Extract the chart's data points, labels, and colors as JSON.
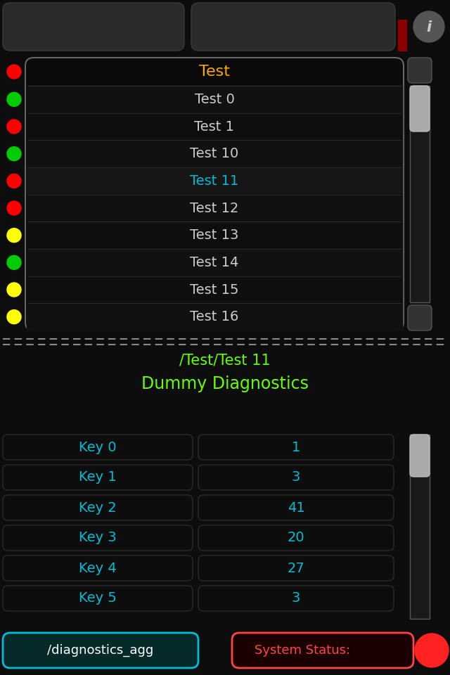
{
  "bg_color": "#0d0d0d",
  "white_text": "#cccccc",
  "orange_text": "#FFA500",
  "green_text": "#66FF00",
  "cyan_text": "#00BCD4",
  "red_text": "#FF4444",
  "header_text": "Test",
  "list_items": [
    "Test 0",
    "Test 1",
    "Test 10",
    "Test 11",
    "Test 12",
    "Test 13",
    "Test 14",
    "Test 15",
    "Test 16"
  ],
  "selected_item": "Test 11",
  "dot_colors": [
    "#FF0000",
    "#00CC00",
    "#FF0000",
    "#00CC00",
    "#FF0000",
    "#FF0000",
    "#FFFF00",
    "#00CC00",
    "#FFFF00",
    "#FFFF00"
  ],
  "path_text": "/Test/Test 11",
  "diag_text": "Dummy Diagnostics",
  "keys": [
    "Key 0",
    "Key 1",
    "Key 2",
    "Key 3",
    "Key 4",
    "Key 5"
  ],
  "values": [
    "1",
    "3",
    "41",
    "20",
    "27",
    "3"
  ],
  "btn1_text": "/diagnostics_agg",
  "btn2_text": "System Status:",
  "separator_color": "#888888",
  "dark_red_bar": "#8B0000",
  "panel_border": "#666666",
  "row_sep": "#2a2a2a"
}
